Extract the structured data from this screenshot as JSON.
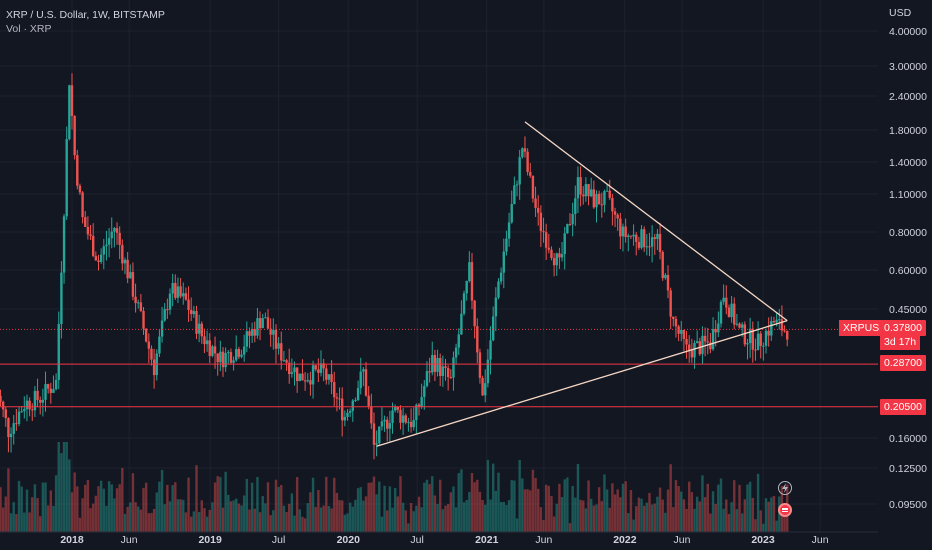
{
  "legend": {
    "symbol_title": "XRP / U.S. Dollar, 1W, BITSTAMP",
    "volume_label": "Vol · XRP"
  },
  "axis": {
    "currency": "USD"
  },
  "price_tag": {
    "symbol": "XRPUSD",
    "value": "0.37800",
    "countdown": "3d 17h"
  },
  "level_tags": [
    "0.28700",
    "0.20500"
  ],
  "icons": {
    "alert": "lightning-icon",
    "flag": "flag-icon"
  },
  "colors": {
    "background": "#131722",
    "up": "#26a69a",
    "down": "#ef5350",
    "level_line": "#f23645",
    "trendline": "#f5d7c4",
    "grid": "#1e222d"
  },
  "chart_data": {
    "type": "candlestick",
    "scale": "log",
    "title": "XRP / U.S. Dollar, 1W, BITSTAMP",
    "ylabel": "USD",
    "ylim": [
      0.08,
      4.3
    ],
    "y_ticks": [
      "4.00000",
      "3.00000",
      "2.40000",
      "1.80000",
      "1.40000",
      "1.10000",
      "0.80000",
      "0.60000",
      "0.45000",
      "0.37800",
      "0.28700",
      "0.20500",
      "0.16000",
      "0.12500",
      "0.09500"
    ],
    "x_ticks": [
      "2018",
      "Jun",
      "2019",
      "Jul",
      "2020",
      "Jul",
      "2021",
      "Jun",
      "2022",
      "Jun",
      "2023",
      "Jun"
    ],
    "x_tick_dates": [
      "2018-01-01",
      "2018-06-01",
      "2019-01-01",
      "2019-07-01",
      "2020-01-01",
      "2020-07-01",
      "2021-01-01",
      "2021-06-01",
      "2022-01-01",
      "2022-06-01",
      "2023-01-01",
      "2023-06-01"
    ],
    "x_range": [
      "2017-06-12",
      "2023-09-01"
    ],
    "last_price": 0.378,
    "horizontal_levels": [
      0.287,
      0.205
    ],
    "trendlines": [
      {
        "from": {
          "date": "2021-04-12",
          "price": 1.95
        },
        "to": {
          "date": "2023-03-06",
          "price": 0.405
        }
      },
      {
        "from": {
          "date": "2020-03-16",
          "price": 0.15
        },
        "to": {
          "date": "2023-03-06",
          "price": 0.405
        }
      }
    ],
    "price_path": [
      [
        "2017-06-12",
        0.26
      ],
      [
        "2017-07-24",
        0.17
      ],
      [
        "2017-09-04",
        0.21
      ],
      [
        "2017-10-16",
        0.22
      ],
      [
        "2017-11-27",
        0.25
      ],
      [
        "2017-12-18",
        1.0
      ],
      [
        "2018-01-01",
        2.75
      ],
      [
        "2018-01-15",
        1.5
      ],
      [
        "2018-02-05",
        0.9
      ],
      [
        "2018-03-19",
        0.65
      ],
      [
        "2018-04-30",
        0.85
      ],
      [
        "2018-06-25",
        0.48
      ],
      [
        "2018-08-13",
        0.28
      ],
      [
        "2018-09-24",
        0.52
      ],
      [
        "2018-11-05",
        0.47
      ],
      [
        "2018-12-17",
        0.36
      ],
      [
        "2019-02-04",
        0.3
      ],
      [
        "2019-04-01",
        0.33
      ],
      [
        "2019-05-27",
        0.42
      ],
      [
        "2019-07-08",
        0.32
      ],
      [
        "2019-09-02",
        0.26
      ],
      [
        "2019-11-04",
        0.27
      ],
      [
        "2019-12-30",
        0.19
      ],
      [
        "2020-02-17",
        0.27
      ],
      [
        "2020-03-16",
        0.15
      ],
      [
        "2020-05-04",
        0.2
      ],
      [
        "2020-06-29",
        0.18
      ],
      [
        "2020-08-17",
        0.3
      ],
      [
        "2020-10-05",
        0.25
      ],
      [
        "2020-11-23",
        0.6
      ],
      [
        "2020-12-28",
        0.22
      ],
      [
        "2021-02-08",
        0.55
      ],
      [
        "2021-04-12",
        1.6
      ],
      [
        "2021-05-24",
        0.9
      ],
      [
        "2021-07-19",
        0.62
      ],
      [
        "2021-09-06",
        1.2
      ],
      [
        "2021-10-18",
        1.05
      ],
      [
        "2021-11-22",
        1.05
      ],
      [
        "2022-01-03",
        0.8
      ],
      [
        "2022-02-14",
        0.78
      ],
      [
        "2022-04-04",
        0.75
      ],
      [
        "2022-05-16",
        0.4
      ],
      [
        "2022-06-20",
        0.32
      ],
      [
        "2022-08-22",
        0.34
      ],
      [
        "2022-09-26",
        0.5
      ],
      [
        "2022-11-07",
        0.37
      ],
      [
        "2022-12-26",
        0.34
      ],
      [
        "2023-02-06",
        0.4
      ],
      [
        "2023-03-06",
        0.378
      ]
    ]
  }
}
